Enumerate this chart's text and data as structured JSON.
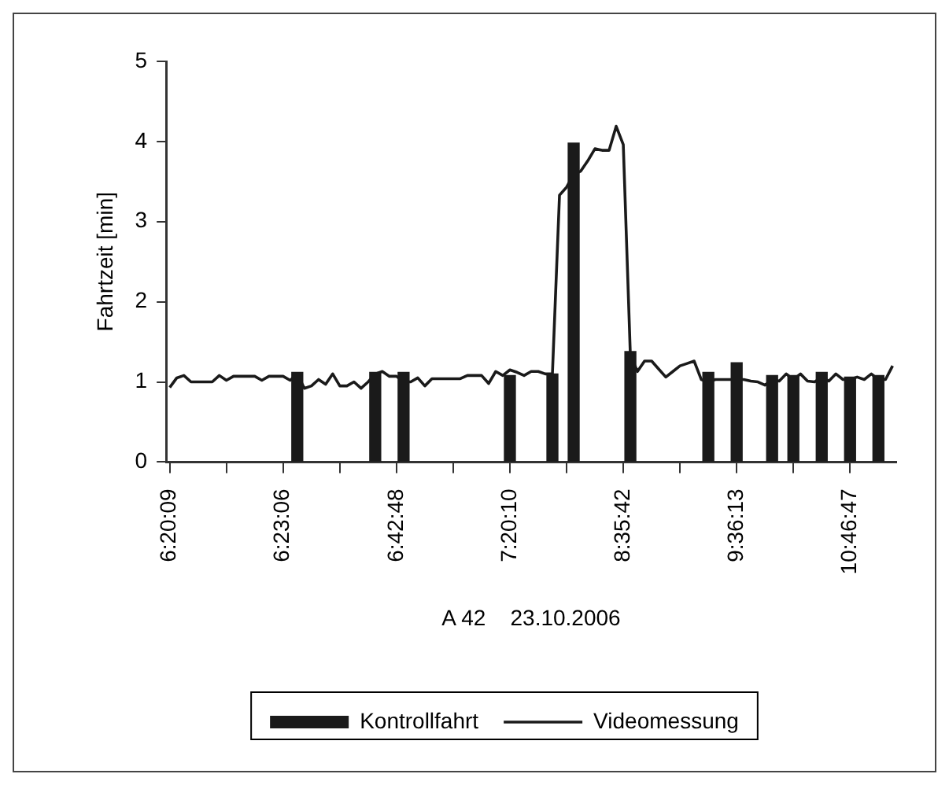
{
  "chart_data": {
    "type": "bar",
    "xlabel": "A 42    23.10.2006",
    "ylabel": "Fahrtzeit [min]",
    "categories": [
      "6:20:09",
      null,
      null,
      null,
      null,
      null,
      null,
      null,
      null,
      null,
      null,
      null,
      null,
      null,
      null,
      null,
      "6:23:06",
      null,
      null,
      null,
      null,
      null,
      null,
      null,
      null,
      null,
      null,
      null,
      null,
      null,
      null,
      null,
      "6:42:48",
      null,
      null,
      null,
      null,
      null,
      null,
      null,
      null,
      null,
      null,
      null,
      null,
      null,
      null,
      null,
      "7:20:10",
      null,
      null,
      null,
      null,
      null,
      null,
      null,
      null,
      null,
      null,
      null,
      null,
      null,
      null,
      null,
      "8:35:42",
      null,
      null,
      null,
      null,
      null,
      null,
      null,
      null,
      null,
      null,
      null,
      null,
      null,
      null,
      null,
      "9:36:13",
      null,
      null,
      null,
      null,
      null,
      null,
      null,
      null,
      null,
      null,
      null,
      null,
      null,
      null,
      null,
      "10:46:47",
      null,
      null,
      null,
      null,
      null,
      null
    ],
    "ylim": [
      0,
      5
    ],
    "yticks": [
      0,
      1,
      2,
      3,
      4,
      5
    ],
    "grid": false,
    "legend": "bottom",
    "series": [
      {
        "name": "Kontrollfahrt",
        "color": "#1a1a1a",
        "values": [
          null,
          null,
          null,
          null,
          null,
          null,
          null,
          null,
          null,
          null,
          null,
          null,
          null,
          null,
          null,
          null,
          null,
          null,
          1.12,
          null,
          null,
          null,
          null,
          null,
          null,
          null,
          null,
          null,
          null,
          1.12,
          null,
          null,
          null,
          1.12,
          null,
          null,
          null,
          null,
          null,
          null,
          null,
          null,
          null,
          null,
          null,
          null,
          null,
          null,
          1.08,
          null,
          null,
          null,
          null,
          null,
          1.1,
          null,
          null,
          3.98,
          null,
          null,
          null,
          null,
          null,
          null,
          null,
          1.38,
          null,
          null,
          null,
          null,
          null,
          null,
          null,
          null,
          null,
          null,
          1.12,
          null,
          null,
          null,
          1.24,
          null,
          null,
          null,
          null,
          1.08,
          null,
          null,
          1.08,
          null,
          null,
          null,
          1.12,
          null,
          null,
          null,
          1.06,
          null,
          null,
          null,
          1.08,
          null,
          null
        ]
      },
      {
        "name": "Videomessung",
        "type": "line",
        "color": "#1a1a1a",
        "marker": "none",
        "values": [
          0.93,
          1.05,
          1.08,
          1.0,
          1.0,
          1.0,
          1.0,
          1.08,
          1.02,
          1.07,
          1.07,
          1.07,
          1.07,
          1.02,
          1.07,
          1.07,
          1.07,
          1.02,
          1.1,
          0.92,
          0.95,
          1.03,
          0.97,
          1.1,
          0.95,
          0.95,
          1.0,
          0.92,
          1.0,
          1.1,
          1.13,
          1.07,
          1.07,
          1.0,
          1.0,
          1.05,
          0.95,
          1.04,
          1.04,
          1.04,
          1.04,
          1.04,
          1.08,
          1.08,
          1.08,
          0.98,
          1.13,
          1.08,
          1.15,
          1.12,
          1.08,
          1.13,
          1.13,
          1.1,
          1.1,
          3.33,
          3.43,
          3.59,
          3.63,
          3.76,
          3.91,
          3.89,
          3.89,
          4.19,
          3.96,
          1.33,
          1.13,
          1.26,
          1.26,
          1.16,
          1.06,
          1.13,
          1.2,
          1.23,
          1.26,
          1.03,
          1.0,
          1.03,
          1.03,
          1.03,
          1.03,
          1.03,
          1.01,
          1.0,
          0.96,
          1.03,
          1.01,
          1.1,
          1.03,
          1.1,
          1.01,
          1.0,
          1.06,
          1.01,
          1.1,
          1.03,
          1.03,
          1.06,
          1.03,
          1.1,
          1.03,
          1.03,
          1.2
        ]
      }
    ]
  }
}
